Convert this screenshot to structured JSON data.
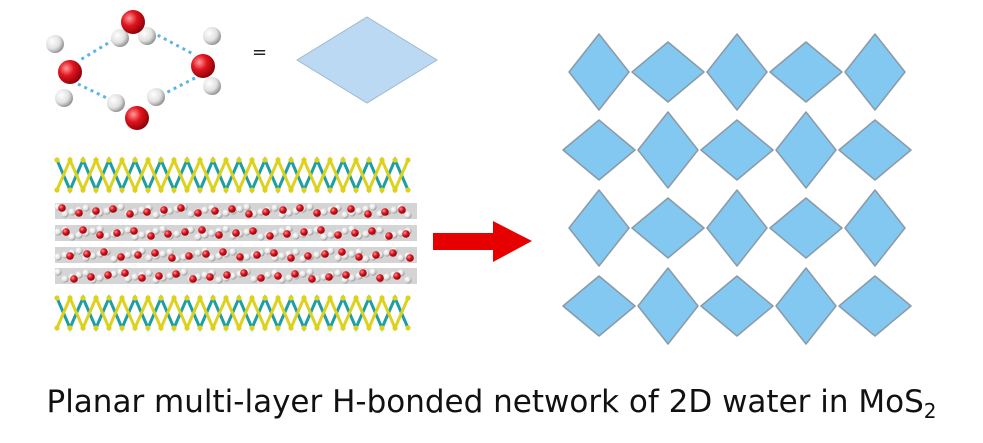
{
  "equals_sign": "=",
  "caption": {
    "text": "Planar multi-layer H-bonded network of 2D water in MoS",
    "subscript": "2"
  },
  "colors": {
    "oxygen": "#e0141e",
    "hydrogen": "#e6e6e6",
    "hbond": "#5ab4e6",
    "rhombus_fill": "#bcd9f4",
    "network_fill": "#82c8f0",
    "network_stroke": "#8a9aa8",
    "mo": "#1c9ea3",
    "s": "#dcd21e",
    "arrow": "#e60000"
  },
  "network": {
    "rows": 4,
    "cols": 5
  },
  "water_layers": 4
}
